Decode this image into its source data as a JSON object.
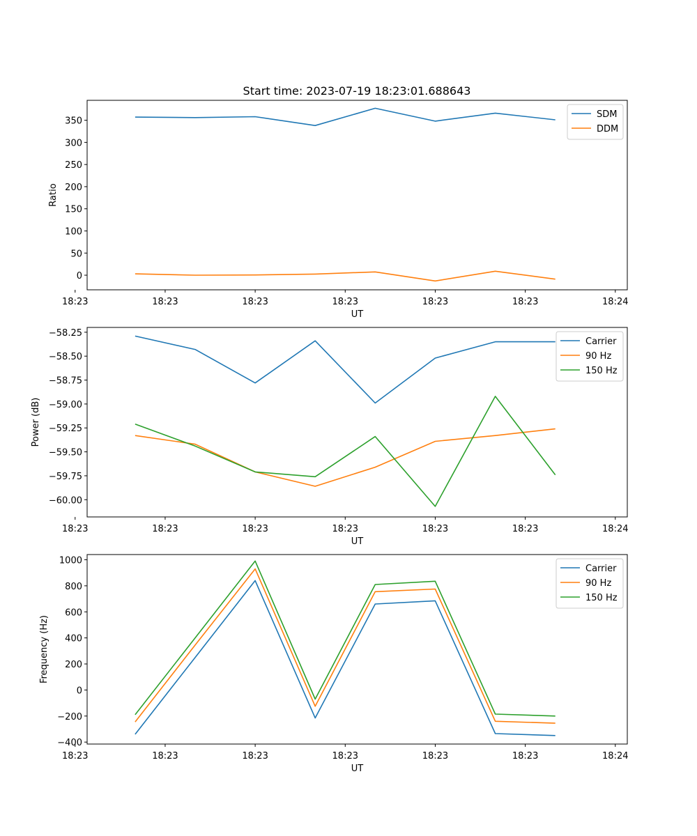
{
  "figure": {
    "title": "Start time: 2023-07-19 18:23:01.688643"
  },
  "colors": {
    "blue": "#1f77b4",
    "orange": "#ff7f0e",
    "green": "#2ca02c"
  },
  "chart_data": [
    {
      "type": "line",
      "title": "Start time: 2023-07-19 18:23:01.688643",
      "xlabel": "UT",
      "ylabel": "Ratio",
      "x": [
        1,
        2,
        3,
        4,
        5,
        6,
        7,
        8
      ],
      "xlim": [
        0.2,
        9.2
      ],
      "ylim": [
        -33,
        395
      ],
      "x_ticks": [
        {
          "pos": 0,
          "label": "18:23"
        },
        {
          "pos": 1.5,
          "label": "18:23"
        },
        {
          "pos": 3,
          "label": "18:23"
        },
        {
          "pos": 4.5,
          "label": "18:23"
        },
        {
          "pos": 6,
          "label": "18:23"
        },
        {
          "pos": 7.5,
          "label": "18:23"
        },
        {
          "pos": 9,
          "label": "18:24"
        }
      ],
      "y_ticks": [
        {
          "v": 0,
          "label": "0"
        },
        {
          "v": 50,
          "label": "50"
        },
        {
          "v": 100,
          "label": "100"
        },
        {
          "v": 150,
          "label": "150"
        },
        {
          "v": 200,
          "label": "200"
        },
        {
          "v": 250,
          "label": "250"
        },
        {
          "v": 300,
          "label": "300"
        },
        {
          "v": 350,
          "label": "350"
        }
      ],
      "series": [
        {
          "name": "SDM",
          "color": "#1f77b4",
          "values": [
            357,
            356,
            358,
            338,
            377,
            348,
            366,
            351
          ]
        },
        {
          "name": "DDM",
          "color": "#ff7f0e",
          "values": [
            3,
            0,
            0.5,
            2.5,
            7.5,
            -13,
            9,
            -9
          ]
        }
      ]
    },
    {
      "type": "line",
      "title": "",
      "xlabel": "UT",
      "ylabel": "Power (dB)",
      "x": [
        1,
        2,
        3,
        4,
        5,
        6,
        7,
        8
      ],
      "xlim": [
        0.2,
        9.2
      ],
      "ylim": [
        -60.18,
        -58.2
      ],
      "x_ticks": [
        {
          "pos": 0,
          "label": "18:23"
        },
        {
          "pos": 1.5,
          "label": "18:23"
        },
        {
          "pos": 3,
          "label": "18:23"
        },
        {
          "pos": 4.5,
          "label": "18:23"
        },
        {
          "pos": 6,
          "label": "18:23"
        },
        {
          "pos": 7.5,
          "label": "18:23"
        },
        {
          "pos": 9,
          "label": "18:24"
        }
      ],
      "y_ticks": [
        {
          "v": -60.0,
          "label": "−60.00"
        },
        {
          "v": -59.75,
          "label": "−59.75"
        },
        {
          "v": -59.5,
          "label": "−59.50"
        },
        {
          "v": -59.25,
          "label": "−59.25"
        },
        {
          "v": -59.0,
          "label": "−59.00"
        },
        {
          "v": -58.75,
          "label": "−58.75"
        },
        {
          "v": -58.5,
          "label": "−58.50"
        },
        {
          "v": -58.25,
          "label": "−58.25"
        }
      ],
      "series": [
        {
          "name": "Carrier",
          "color": "#1f77b4",
          "values": [
            -58.29,
            -58.43,
            -58.78,
            -58.34,
            -58.99,
            -58.52,
            -58.35,
            -58.35
          ]
        },
        {
          "name": "90 Hz",
          "color": "#ff7f0e",
          "values": [
            -59.33,
            -59.42,
            -59.71,
            -59.86,
            -59.66,
            -59.39,
            -59.33,
            -59.26
          ]
        },
        {
          "name": "150 Hz",
          "color": "#2ca02c",
          "values": [
            -59.21,
            -59.44,
            -59.71,
            -59.76,
            -59.34,
            -60.07,
            -58.92,
            -59.74
          ]
        }
      ]
    },
    {
      "type": "line",
      "title": "",
      "xlabel": "UT",
      "ylabel": "Frequency (Hz)",
      "x": [
        1,
        2,
        3,
        4,
        5,
        6,
        7,
        8
      ],
      "xlim": [
        0.2,
        9.2
      ],
      "ylim": [
        -415,
        1040
      ],
      "x_ticks": [
        {
          "pos": 0,
          "label": "18:23"
        },
        {
          "pos": 1.5,
          "label": "18:23"
        },
        {
          "pos": 3,
          "label": "18:23"
        },
        {
          "pos": 4.5,
          "label": "18:23"
        },
        {
          "pos": 6,
          "label": "18:23"
        },
        {
          "pos": 7.5,
          "label": "18:23"
        },
        {
          "pos": 9,
          "label": "18:24"
        }
      ],
      "y_ticks": [
        {
          "v": -400,
          "label": "−400"
        },
        {
          "v": -200,
          "label": "−200"
        },
        {
          "v": 0,
          "label": "0"
        },
        {
          "v": 200,
          "label": "200"
        },
        {
          "v": 400,
          "label": "400"
        },
        {
          "v": 600,
          "label": "600"
        },
        {
          "v": 800,
          "label": "800"
        },
        {
          "v": 1000,
          "label": "1000"
        }
      ],
      "series": [
        {
          "name": "Carrier",
          "color": "#1f77b4",
          "values": [
            -340,
            250,
            840,
            -215,
            660,
            685,
            -335,
            -350
          ]
        },
        {
          "name": "90 Hz",
          "color": "#ff7f0e",
          "values": [
            -245,
            345,
            930,
            -125,
            755,
            775,
            -240,
            -255
          ]
        },
        {
          "name": "150 Hz",
          "color": "#2ca02c",
          "values": [
            -190,
            400,
            990,
            -70,
            810,
            835,
            -185,
            -200
          ]
        }
      ]
    }
  ]
}
